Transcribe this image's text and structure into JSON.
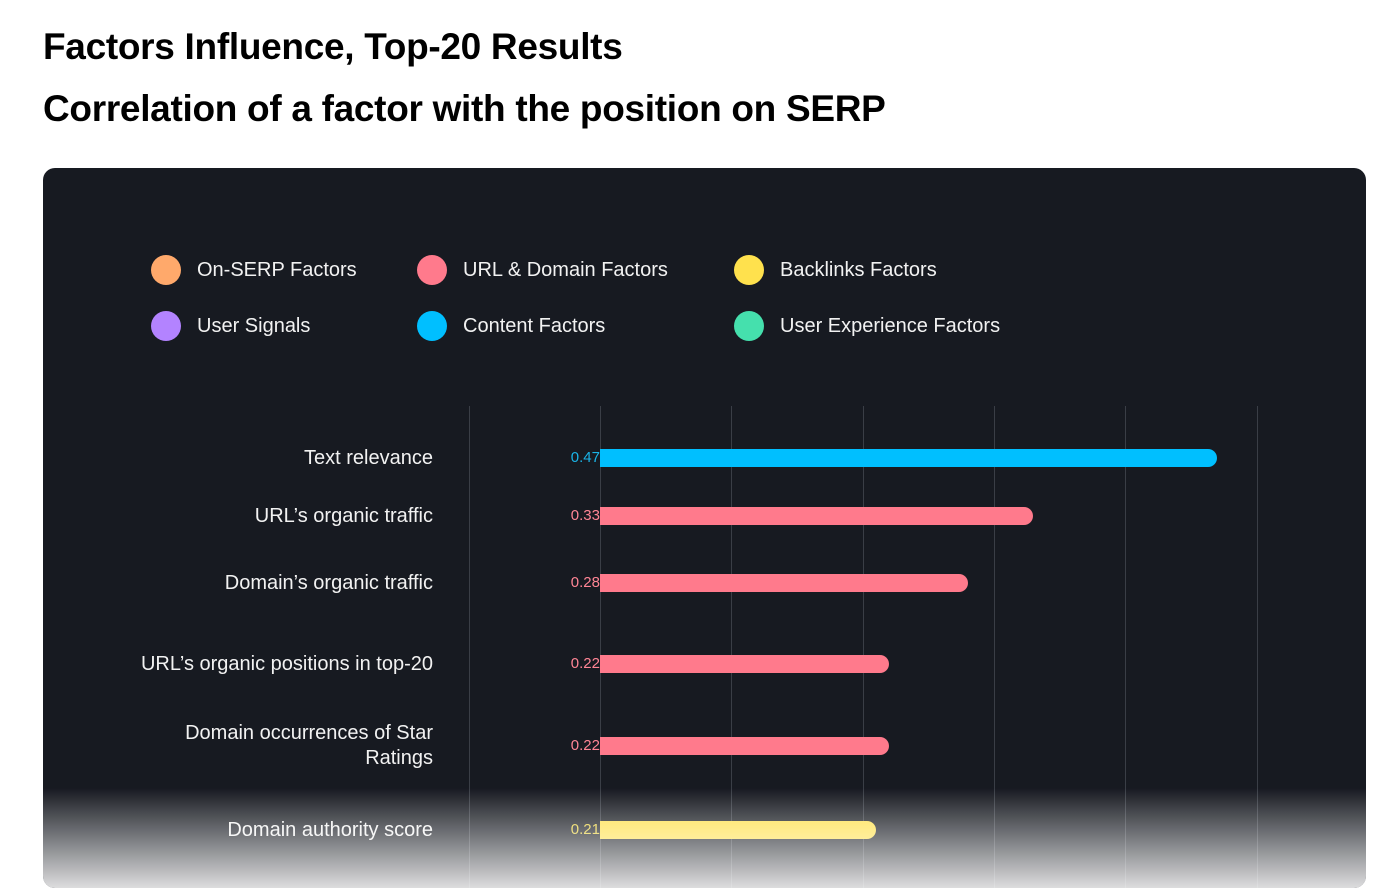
{
  "chart_data": {
    "type": "bar",
    "orientation": "horizontal",
    "title": "Factors Influence, Top-20 Results",
    "subtitle": "Correlation of a factor with the position on SERP",
    "xlim": [
      -0.1,
      0.5
    ],
    "grid": true,
    "legend_position": "top",
    "legend": [
      {
        "name": "On-SERP Factors",
        "color": "#ffa96b"
      },
      {
        "name": "URL & Domain Factors",
        "color": "#ff7a8c"
      },
      {
        "name": "Backlinks Factors",
        "color": "#ffe14d"
      },
      {
        "name": "User Signals",
        "color": "#b383ff"
      },
      {
        "name": "Content Factors",
        "color": "#00bfff"
      },
      {
        "name": "User Experience Factors",
        "color": "#45e0ad"
      }
    ],
    "bars": [
      {
        "label": "Text relevance",
        "value": 0.47,
        "value_label": "0.47",
        "group": "Content Factors",
        "color": "#00bfff",
        "label_color": "#1ab3e6"
      },
      {
        "label": "URL’s organic traffic",
        "value": 0.33,
        "value_label": "0.33",
        "group": "URL & Domain Factors",
        "color": "#ff7a8c",
        "label_color": "#ff8595"
      },
      {
        "label": "Domain’s organic traffic",
        "value": 0.28,
        "value_label": "0.28",
        "group": "URL & Domain Factors",
        "color": "#ff7a8c",
        "label_color": "#ff8595"
      },
      {
        "label": "URL’s organic positions in top-20",
        "value": 0.22,
        "value_label": "0.22",
        "group": "URL & Domain Factors",
        "color": "#ff7a8c",
        "label_color": "#ff8595"
      },
      {
        "label": "Domain occurrences of Star Ratings",
        "value": 0.22,
        "value_label": "0.22",
        "group": "URL & Domain Factors",
        "color": "#ff7a8c",
        "label_color": "#ff8595"
      },
      {
        "label": "Domain authority score",
        "value": 0.21,
        "value_label": "0.21",
        "group": "Backlinks Factors",
        "color": "#ffe14d",
        "label_color": "#e6cf40"
      }
    ]
  }
}
